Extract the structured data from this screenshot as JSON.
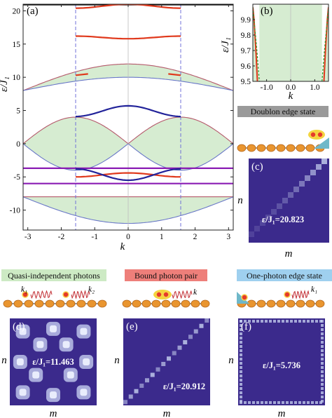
{
  "colors": {
    "band_fill": "#d6ecd1",
    "band_edge_blue": "#6a78c8",
    "band_edge_red": "#b5596b",
    "red": "#e0391c",
    "navy": "#22239a",
    "purple": "#8a1cb4",
    "heatmap_bg": "#3b2a8c",
    "banner_gray": "#9a9a9a",
    "banner_green": "#cdeac4",
    "banner_red": "#ee7f7a",
    "banner_blue": "#9fd0ef"
  },
  "panels": {
    "a": {
      "label": "(a)"
    },
    "b": {
      "label": "(b)"
    },
    "c": {
      "label": "(c)",
      "banner": "Doublon edge state",
      "energy_label": "ε/J₁=20.823"
    },
    "d": {
      "label": "(d)",
      "banner": "Quasi-independent photons",
      "energy_label": "ε/J₁=11.463",
      "k1_label": "k₁",
      "k2_label": "k₂"
    },
    "e": {
      "label": "(e)",
      "banner": "Bound photon pair",
      "energy_label": "ε/J₁=20.912",
      "k_label": "k"
    },
    "f": {
      "label": "(f)",
      "banner": "One-photon edge state",
      "energy_label": "ε/J₁=5.736",
      "k1_label": "k₁"
    }
  },
  "heatmap_axes": {
    "xlabel": "m",
    "ylabel": "n"
  },
  "chart_data": [
    {
      "id": "a",
      "type": "line",
      "title": "",
      "xlabel": "k",
      "ylabel": "ε/J₁",
      "xlim": [
        -3.14,
        3.14
      ],
      "ylim": [
        -13,
        21
      ],
      "xticks": [
        -3,
        -2,
        -1,
        0,
        1,
        2,
        3
      ],
      "yticks": [
        -10,
        -5,
        0,
        5,
        10,
        15,
        20
      ],
      "vertical_dashed_lines": [
        -1.57,
        1.57
      ],
      "continuum_bands": [
        {
          "lower_k0": 10.0,
          "lower_edge": 8.0,
          "upper_k0": 12.0,
          "upper_edge": 8.0
        },
        {
          "lower_k0": 0.0,
          "lower_edge": 0.0,
          "upper_k0": 4.0,
          "upper_edge": 0.0,
          "shape": "two-lobe"
        },
        {
          "lower_k0": -12.0,
          "lower_edge": -8.0,
          "upper_k0": -8.0,
          "upper_edge": -8.0
        }
      ],
      "series": [
        {
          "color": "black",
          "k": [
            -3.14,
            3.14
          ],
          "eps": [
            20.9,
            20.9
          ]
        },
        {
          "color": "red",
          "k": [
            -1.57,
            0,
            1.57
          ],
          "eps": [
            20.4,
            21.0,
            20.4
          ]
        },
        {
          "color": "red",
          "k": [
            -1.57,
            0,
            1.57
          ],
          "eps": [
            16.2,
            15.8,
            16.2
          ]
        },
        {
          "color": "red",
          "k": [
            -1.57,
            -1.2
          ],
          "eps": [
            10.3,
            10.5
          ]
        },
        {
          "color": "red",
          "k": [
            1.2,
            1.57
          ],
          "eps": [
            10.5,
            10.3
          ]
        },
        {
          "color": "navy",
          "k": [
            -1.57,
            0,
            1.57
          ],
          "eps": [
            4.1,
            5.7,
            4.1
          ]
        },
        {
          "color": "purple",
          "k": [
            -3.14,
            3.14
          ],
          "eps": [
            -3.7,
            -3.7
          ]
        },
        {
          "color": "purple",
          "k": [
            -3.14,
            3.14
          ],
          "eps": [
            -6.0,
            -6.0
          ]
        },
        {
          "color": "red",
          "k": [
            -1.57,
            0,
            1.57
          ],
          "eps": [
            -5.0,
            -4.4,
            -5.0
          ]
        },
        {
          "color": "navy",
          "k": [
            -1.57,
            0,
            1.57
          ],
          "eps": [
            -3.8,
            -5.5,
            -3.8
          ]
        }
      ]
    },
    {
      "id": "b",
      "type": "line",
      "title": "",
      "xlabel": "k",
      "ylabel": "ε/J₁",
      "xlim": [
        -1.57,
        1.57
      ],
      "ylim": [
        9.5,
        10.0
      ],
      "xticks": [
        -1.0,
        0.0,
        1.0
      ],
      "yticks": [
        9.5,
        9.6,
        9.7,
        9.8,
        9.9
      ],
      "series": [
        {
          "color": "red",
          "k": [
            -1.57,
            -1.52,
            -1.45,
            -1.38
          ],
          "eps": [
            9.98,
            9.9,
            9.72,
            9.5
          ]
        },
        {
          "color": "red",
          "k": [
            1.38,
            1.45,
            1.52,
            1.57
          ],
          "eps": [
            9.5,
            9.72,
            9.9,
            9.98
          ]
        },
        {
          "color": "green",
          "style": "dashed",
          "k": [
            -1.57,
            -1.4,
            -1.3
          ],
          "eps": [
            9.98,
            9.7,
            9.5
          ]
        },
        {
          "color": "green",
          "style": "dashed",
          "k": [
            1.3,
            1.4,
            1.57
          ],
          "eps": [
            9.5,
            9.7,
            9.98
          ]
        }
      ]
    }
  ]
}
